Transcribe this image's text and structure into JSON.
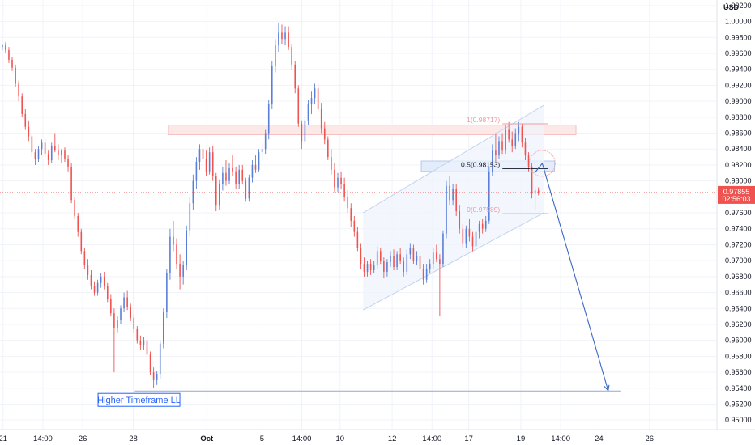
{
  "chart_data": {
    "type": "candlestick",
    "currency": "USD",
    "yaxis": {
      "ticks": [
        "1.00200",
        "1.00000",
        "0.99800",
        "0.99600",
        "0.99400",
        "0.99200",
        "0.99000",
        "0.98800",
        "0.98600",
        "0.98400",
        "0.98200",
        "0.98000",
        "0.97800",
        "0.97600",
        "0.97400",
        "0.97200",
        "0.97000",
        "0.96800",
        "0.96600",
        "0.96400",
        "0.96200",
        "0.96000",
        "0.95800",
        "0.95600",
        "0.95400",
        "0.95200",
        "0.95000"
      ],
      "ylim": [
        0.9488,
        1.0027
      ]
    },
    "xaxis": {
      "ticks": [
        {
          "label": "21",
          "bold": false,
          "t": 2
        },
        {
          "label": "14:00",
          "bold": false,
          "t": 28
        },
        {
          "label": "26",
          "bold": false,
          "t": 54
        },
        {
          "label": "28",
          "bold": false,
          "t": 87
        },
        {
          "label": "Oct",
          "bold": true,
          "t": 135
        },
        {
          "label": "5",
          "bold": false,
          "t": 171
        },
        {
          "label": "14:00",
          "bold": false,
          "t": 197
        },
        {
          "label": "10",
          "bold": false,
          "t": 222
        },
        {
          "label": "12",
          "bold": false,
          "t": 256
        },
        {
          "label": "14:00",
          "bold": false,
          "t": 282
        },
        {
          "label": "17",
          "bold": false,
          "t": 306
        },
        {
          "label": "19",
          "bold": false,
          "t": 340
        },
        {
          "label": "14:00",
          "bold": false,
          "t": 366
        },
        {
          "label": "24",
          "bold": false,
          "t": 391
        },
        {
          "label": "26",
          "bold": false,
          "t": 424
        }
      ],
      "tlim": [
        0,
        468
      ]
    },
    "candles": [
      [
        0.9968,
        0.9972,
        0.9964,
        0.997
      ],
      [
        0.997,
        0.9974,
        0.996,
        0.9964
      ],
      [
        0.9964,
        0.9968,
        0.9948,
        0.9952
      ],
      [
        0.9952,
        0.9956,
        0.9938,
        0.9942
      ],
      [
        0.9942,
        0.9946,
        0.9918,
        0.9922
      ],
      [
        0.9922,
        0.9926,
        0.99,
        0.9906
      ],
      [
        0.9906,
        0.991,
        0.988,
        0.9884
      ],
      [
        0.9884,
        0.989,
        0.9864,
        0.9868
      ],
      [
        0.9868,
        0.9876,
        0.985,
        0.9856
      ],
      [
        0.9856,
        0.986,
        0.983,
        0.9836
      ],
      [
        0.9836,
        0.984,
        0.982,
        0.9828
      ],
      [
        0.9828,
        0.9844,
        0.9824,
        0.984
      ],
      [
        0.984,
        0.9852,
        0.9832,
        0.9848
      ],
      [
        0.9848,
        0.9854,
        0.983,
        0.9834
      ],
      [
        0.9834,
        0.9838,
        0.982,
        0.9826
      ],
      [
        0.9826,
        0.9848,
        0.9822,
        0.9844
      ],
      [
        0.9844,
        0.986,
        0.9836,
        0.9838
      ],
      [
        0.9838,
        0.9846,
        0.9826,
        0.9832
      ],
      [
        0.9832,
        0.984,
        0.9822,
        0.9838
      ],
      [
        0.9838,
        0.9842,
        0.9824,
        0.9828
      ],
      [
        0.9828,
        0.9832,
        0.9812,
        0.9818
      ],
      [
        0.9818,
        0.9822,
        0.9772,
        0.9776
      ],
      [
        0.9776,
        0.978,
        0.9752,
        0.9756
      ],
      [
        0.9756,
        0.976,
        0.973,
        0.9736
      ],
      [
        0.9736,
        0.974,
        0.9708,
        0.9712
      ],
      [
        0.9712,
        0.9716,
        0.969,
        0.9694
      ],
      [
        0.9694,
        0.9702,
        0.9676,
        0.9682
      ],
      [
        0.9682,
        0.9688,
        0.9664,
        0.9668
      ],
      [
        0.9668,
        0.9674,
        0.9656,
        0.966
      ],
      [
        0.966,
        0.9676,
        0.9656,
        0.9672
      ],
      [
        0.9672,
        0.9684,
        0.9666,
        0.968
      ],
      [
        0.968,
        0.9686,
        0.9664,
        0.9668
      ],
      [
        0.9668,
        0.9672,
        0.9648,
        0.9652
      ],
      [
        0.9652,
        0.9658,
        0.963,
        0.9634
      ],
      [
        0.9634,
        0.964,
        0.956,
        0.9616
      ],
      [
        0.9616,
        0.963,
        0.961,
        0.9626
      ],
      [
        0.9626,
        0.9644,
        0.962,
        0.964
      ],
      [
        0.964,
        0.966,
        0.9636,
        0.9654
      ],
      [
        0.9654,
        0.9662,
        0.9638,
        0.9642
      ],
      [
        0.9642,
        0.9646,
        0.9624,
        0.9628
      ],
      [
        0.9628,
        0.9632,
        0.961,
        0.9614
      ],
      [
        0.9614,
        0.9618,
        0.9596,
        0.96
      ],
      [
        0.96,
        0.9606,
        0.9588,
        0.9594
      ],
      [
        0.9594,
        0.9604,
        0.9588,
        0.96
      ],
      [
        0.96,
        0.9604,
        0.9578,
        0.9582
      ],
      [
        0.9582,
        0.9586,
        0.9556,
        0.956
      ],
      [
        0.956,
        0.9566,
        0.954,
        0.955
      ],
      [
        0.955,
        0.9562,
        0.9544,
        0.9558
      ],
      [
        0.9558,
        0.96,
        0.9552,
        0.9596
      ],
      [
        0.9596,
        0.964,
        0.959,
        0.9636
      ],
      [
        0.9636,
        0.969,
        0.9628,
        0.9684
      ],
      [
        0.9684,
        0.974,
        0.9676,
        0.973
      ],
      [
        0.973,
        0.975,
        0.9712,
        0.972
      ],
      [
        0.972,
        0.9728,
        0.969,
        0.9696
      ],
      [
        0.9696,
        0.9708,
        0.9664,
        0.968
      ],
      [
        0.968,
        0.97,
        0.967,
        0.9694
      ],
      [
        0.9694,
        0.9744,
        0.9688,
        0.9738
      ],
      [
        0.9738,
        0.978,
        0.973,
        0.9772
      ],
      [
        0.9772,
        0.9808,
        0.9764,
        0.98
      ],
      [
        0.98,
        0.983,
        0.979,
        0.9824
      ],
      [
        0.9824,
        0.9846,
        0.9814,
        0.984
      ],
      [
        0.984,
        0.9852,
        0.9822,
        0.9828
      ],
      [
        0.9828,
        0.9838,
        0.9806,
        0.9812
      ],
      [
        0.9812,
        0.9842,
        0.9808,
        0.9836
      ],
      [
        0.9836,
        0.9844,
        0.98,
        0.9806
      ],
      [
        0.9806,
        0.981,
        0.9762,
        0.977
      ],
      [
        0.977,
        0.9802,
        0.9764,
        0.9796
      ],
      [
        0.9796,
        0.9818,
        0.9788,
        0.981
      ],
      [
        0.981,
        0.9826,
        0.9794,
        0.98
      ],
      [
        0.98,
        0.9822,
        0.9796,
        0.9816
      ],
      [
        0.9816,
        0.9832,
        0.9806,
        0.9812
      ],
      [
        0.9812,
        0.9818,
        0.979,
        0.9796
      ],
      [
        0.9796,
        0.982,
        0.979,
        0.9814
      ],
      [
        0.9814,
        0.982,
        0.9796,
        0.98
      ],
      [
        0.98,
        0.9804,
        0.9774,
        0.9778
      ],
      [
        0.9778,
        0.9808,
        0.9774,
        0.9804
      ],
      [
        0.9804,
        0.9826,
        0.9798,
        0.982
      ],
      [
        0.982,
        0.9832,
        0.981,
        0.9814
      ],
      [
        0.9814,
        0.984,
        0.9812,
        0.9836
      ],
      [
        0.9836,
        0.9848,
        0.9826,
        0.984
      ],
      [
        0.984,
        0.9864,
        0.9834,
        0.986
      ],
      [
        0.986,
        0.9902,
        0.9852,
        0.9896
      ],
      [
        0.9896,
        0.995,
        0.989,
        0.9944
      ],
      [
        0.9944,
        0.9978,
        0.9936,
        0.997
      ],
      [
        0.997,
        0.9998,
        0.9962,
        0.9986
      ],
      [
        0.9986,
        0.9996,
        0.9972,
        0.9978
      ],
      [
        0.9978,
        0.9994,
        0.997,
        0.9986
      ],
      [
        0.9986,
        0.9994,
        0.9964,
        0.9968
      ],
      [
        0.9968,
        0.9972,
        0.994,
        0.9946
      ],
      [
        0.9946,
        0.995,
        0.991,
        0.9916
      ],
      [
        0.9916,
        0.992,
        0.9868,
        0.9872
      ],
      [
        0.9872,
        0.9876,
        0.984,
        0.985
      ],
      [
        0.985,
        0.9882,
        0.9846,
        0.9876
      ],
      [
        0.9876,
        0.9902,
        0.987,
        0.9896
      ],
      [
        0.9896,
        0.9912,
        0.9884,
        0.9904
      ],
      [
        0.9904,
        0.9922,
        0.9896,
        0.9916
      ],
      [
        0.9916,
        0.9922,
        0.9886,
        0.989
      ],
      [
        0.989,
        0.9898,
        0.986,
        0.9866
      ],
      [
        0.9866,
        0.9874,
        0.9846,
        0.9852
      ],
      [
        0.9852,
        0.9856,
        0.9826,
        0.983
      ],
      [
        0.983,
        0.984,
        0.9808,
        0.9814
      ],
      [
        0.9814,
        0.9822,
        0.9786,
        0.9792
      ],
      [
        0.9792,
        0.981,
        0.9786,
        0.9804
      ],
      [
        0.9804,
        0.9812,
        0.979,
        0.9796
      ],
      [
        0.9796,
        0.9804,
        0.9774,
        0.978
      ],
      [
        0.978,
        0.9788,
        0.976,
        0.9766
      ],
      [
        0.9766,
        0.9772,
        0.9742,
        0.975
      ],
      [
        0.975,
        0.9756,
        0.973,
        0.9736
      ],
      [
        0.9736,
        0.9742,
        0.9712,
        0.9716
      ],
      [
        0.9716,
        0.9722,
        0.969,
        0.9696
      ],
      [
        0.9696,
        0.9704,
        0.968,
        0.9686
      ],
      [
        0.9686,
        0.97,
        0.968,
        0.9696
      ],
      [
        0.9696,
        0.9702,
        0.9682,
        0.9688
      ],
      [
        0.9688,
        0.97,
        0.9684,
        0.9694
      ],
      [
        0.9694,
        0.9718,
        0.969,
        0.9712
      ],
      [
        0.9712,
        0.9716,
        0.9696,
        0.97
      ],
      [
        0.97,
        0.9704,
        0.9678,
        0.9686
      ],
      [
        0.9686,
        0.9702,
        0.968,
        0.9698
      ],
      [
        0.9698,
        0.9712,
        0.9692,
        0.9706
      ],
      [
        0.9706,
        0.9714,
        0.9688,
        0.9692
      ],
      [
        0.9692,
        0.9712,
        0.9688,
        0.9708
      ],
      [
        0.9708,
        0.9716,
        0.9696,
        0.97
      ],
      [
        0.97,
        0.9704,
        0.968,
        0.9686
      ],
      [
        0.9686,
        0.9714,
        0.9682,
        0.9708
      ],
      [
        0.9708,
        0.9722,
        0.9702,
        0.9716
      ],
      [
        0.9716,
        0.972,
        0.9696,
        0.97
      ],
      [
        0.97,
        0.9712,
        0.9694,
        0.9706
      ],
      [
        0.9706,
        0.9712,
        0.9686,
        0.969
      ],
      [
        0.969,
        0.9696,
        0.967,
        0.9676
      ],
      [
        0.9676,
        0.9696,
        0.9672,
        0.969
      ],
      [
        0.969,
        0.9702,
        0.9684,
        0.9696
      ],
      [
        0.9696,
        0.9716,
        0.969,
        0.971
      ],
      [
        0.971,
        0.972,
        0.9698,
        0.9702
      ],
      [
        0.9702,
        0.9708,
        0.963,
        0.9696
      ],
      [
        0.9696,
        0.9738,
        0.9692,
        0.9734
      ],
      [
        0.9734,
        0.98,
        0.9728,
        0.9794
      ],
      [
        0.9794,
        0.9806,
        0.977,
        0.9776
      ],
      [
        0.9776,
        0.9796,
        0.977,
        0.979
      ],
      [
        0.979,
        0.9796,
        0.9756,
        0.9762
      ],
      [
        0.9762,
        0.977,
        0.9734,
        0.974
      ],
      [
        0.974,
        0.9746,
        0.9716,
        0.9722
      ],
      [
        0.9722,
        0.9744,
        0.9716,
        0.974
      ],
      [
        0.974,
        0.9752,
        0.9724,
        0.973
      ],
      [
        0.973,
        0.9736,
        0.9712,
        0.9718
      ],
      [
        0.9718,
        0.9742,
        0.9714,
        0.9736
      ],
      [
        0.9736,
        0.975,
        0.9728,
        0.9746
      ],
      [
        0.9746,
        0.9752,
        0.9734,
        0.974
      ],
      [
        0.974,
        0.9756,
        0.9736,
        0.975
      ],
      [
        0.975,
        0.9818,
        0.9746,
        0.9812
      ],
      [
        0.9812,
        0.9846,
        0.9806,
        0.9838
      ],
      [
        0.9838,
        0.986,
        0.9824,
        0.9832
      ],
      [
        0.9832,
        0.9856,
        0.9828,
        0.985
      ],
      [
        0.985,
        0.986,
        0.9834,
        0.9838
      ],
      [
        0.9838,
        0.987,
        0.9834,
        0.9864
      ],
      [
        0.9864,
        0.9874,
        0.9848,
        0.9852
      ],
      [
        0.9852,
        0.9862,
        0.9836,
        0.9844
      ],
      [
        0.9844,
        0.9866,
        0.984,
        0.986
      ],
      [
        0.986,
        0.9874,
        0.985,
        0.9868
      ],
      [
        0.9868,
        0.9872,
        0.9842,
        0.9848
      ],
      [
        0.9848,
        0.9854,
        0.9826,
        0.9832
      ],
      [
        0.9832,
        0.9836,
        0.9812,
        0.9818
      ],
      [
        0.9818,
        0.9822,
        0.9778,
        0.9784
      ],
      [
        0.9784,
        0.9792,
        0.9764,
        0.9788
      ],
      [
        0.9788,
        0.9792,
        0.9782,
        0.9785
      ]
    ],
    "annotations": {
      "fib_1": {
        "label": "1(0.98717)",
        "value": 0.98717
      },
      "fib_05": {
        "label": "0.5(0.98153)",
        "value": 0.98153
      },
      "fib_0": {
        "label": "0(0.97589)",
        "value": 0.97589
      },
      "higher_tf_ll": {
        "label": "Higher Timeframe LL",
        "value": 0.95365
      },
      "resistance_zone": [
        0.9858,
        0.987
      ],
      "support_zone": [
        0.9812,
        0.9825
      ],
      "channel_upper": [
        [
          237,
          0.976
        ],
        [
          355,
          0.9895
        ]
      ],
      "channel_lower": [
        [
          237,
          0.9638
        ],
        [
          355,
          0.976
        ]
      ],
      "projection": [
        [
          349,
          0.981
        ],
        [
          354,
          0.9822
        ],
        [
          397,
          0.9537
        ]
      ]
    },
    "last_price": {
      "value": "0.97855",
      "countdown": "02:56:03"
    }
  },
  "colors": {
    "up": "#5b7fd6",
    "down": "#ef5350",
    "grid": "#f0f3fa",
    "axis_text": "#131722",
    "price_line": "#ef5350",
    "price_bg": "#ef5350",
    "zone_red": "#fde8e8",
    "zone_blue": "#e3ecfb",
    "channel": "#c5d3ee",
    "projection": "#3a66c8",
    "fib": "#ef9a9a"
  }
}
